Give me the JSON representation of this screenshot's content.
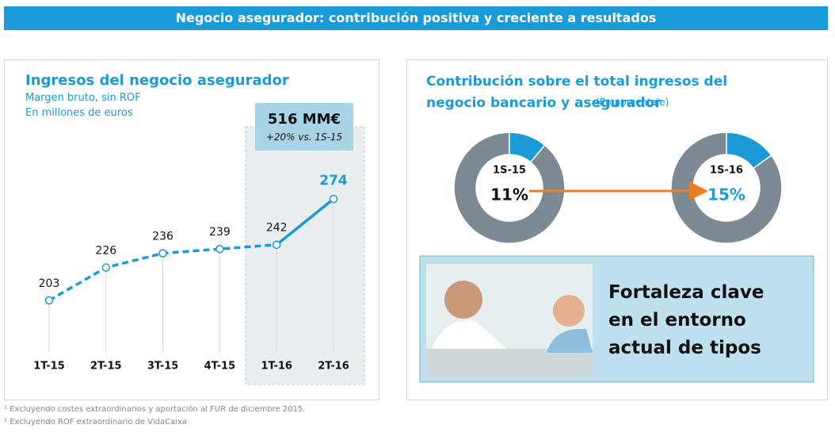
{
  "header": {
    "title": "Negocio asegurador: contribución positiva y creciente a resultados"
  },
  "chart_data": [
    {
      "type": "line",
      "title": "Ingresos del negocio asegurador",
      "subtitle": [
        "Margen bruto, sin ROF",
        "En millones de euros"
      ],
      "categories": [
        "1T-15",
        "2T-15",
        "3T-15",
        "4T-15",
        "1T-16",
        "2T-16"
      ],
      "values": [
        203,
        226,
        236,
        239,
        242,
        274
      ],
      "color": "#1b9ad6",
      "highlight": {
        "title": "516 MM€",
        "subtitle": "+20% vs. 1S-15"
      }
    },
    {
      "type": "donut",
      "title": "Contribución sobre el total ingresos del negocio bancario y asegurador",
      "subtitle": "(En porcentaje)",
      "categories": [
        "1S-15",
        "1S-16"
      ],
      "values": [
        11,
        15
      ],
      "value_labels": [
        "11%",
        "15%"
      ],
      "color": "#1b9ad6",
      "rest_color": "#7c8b93"
    }
  ],
  "callout": {
    "text": "Fortaleza clave en el entorno actual de tipos"
  },
  "footnotes": [
    {
      "mark": "¹",
      "text": "Excluyendo costes extraordinarios y aportación al FUR de diciembre 2015."
    },
    {
      "mark": "²",
      "text": "Excluyendo ROF extraordinario de VidaCaixa"
    }
  ]
}
